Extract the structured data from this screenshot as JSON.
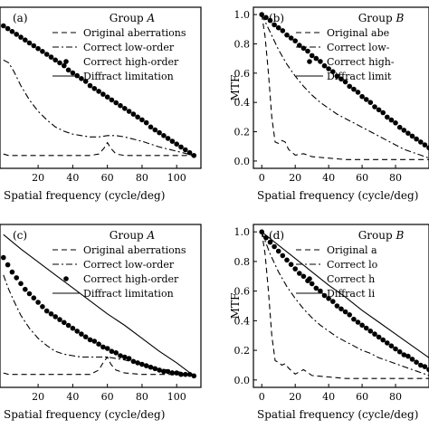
{
  "chart_data": [
    {
      "type": "line",
      "panel_label": "(a)",
      "group_label": "Group",
      "group_letter": "A",
      "xlabel": "Spatial frequency (cycle/deg)",
      "ylabel": "",
      "xlim": [
        -2,
        114
      ],
      "ylim": [
        -0.08,
        1.05
      ],
      "xticks": [
        20,
        40,
        60,
        80,
        100
      ],
      "yticks": [],
      "legend_position": "top-right",
      "series": [
        {
          "name": "Original aberrations",
          "style": "dashed",
          "x": [
            0,
            3,
            6,
            10,
            20,
            30,
            40,
            50,
            55,
            58,
            60,
            62,
            65,
            70,
            80,
            90,
            100,
            110
          ],
          "y": [
            0.02,
            0.01,
            0.01,
            0.01,
            0.01,
            0.01,
            0.01,
            0.01,
            0.02,
            0.06,
            0.1,
            0.06,
            0.02,
            0.01,
            0.01,
            0.01,
            0.01,
            0.01
          ]
        },
        {
          "name": "Correct low-order",
          "style": "dashdot",
          "x": [
            0,
            3,
            6,
            10,
            15,
            20,
            25,
            30,
            35,
            40,
            45,
            50,
            55,
            60,
            65,
            70,
            80,
            90,
            100,
            110
          ],
          "y": [
            0.68,
            0.66,
            0.6,
            0.5,
            0.4,
            0.32,
            0.26,
            0.21,
            0.18,
            0.16,
            0.15,
            0.14,
            0.14,
            0.15,
            0.15,
            0.14,
            0.11,
            0.07,
            0.04,
            0.01
          ]
        },
        {
          "name": "Correct high-order",
          "style": "dots",
          "x": [
            0,
            2.5,
            5,
            7.5,
            10,
            12.5,
            15,
            17.5,
            20,
            22.5,
            25,
            27.5,
            30,
            32.5,
            35,
            37.5,
            40,
            42.5,
            45,
            47.5,
            50,
            52.5,
            55,
            57.5,
            60,
            62.5,
            65,
            67.5,
            70,
            72.5,
            75,
            77.5,
            80,
            82.5,
            85,
            87.5,
            90,
            92.5,
            95,
            97.5,
            100,
            102.5,
            105,
            107.5,
            110
          ],
          "y": [
            0.92,
            0.9,
            0.88,
            0.86,
            0.84,
            0.82,
            0.8,
            0.78,
            0.76,
            0.74,
            0.72,
            0.7,
            0.68,
            0.66,
            0.64,
            0.61,
            0.59,
            0.57,
            0.55,
            0.53,
            0.5,
            0.48,
            0.46,
            0.44,
            0.42,
            0.4,
            0.38,
            0.36,
            0.34,
            0.32,
            0.3,
            0.28,
            0.26,
            0.24,
            0.21,
            0.19,
            0.17,
            0.15,
            0.13,
            0.11,
            0.09,
            0.07,
            0.05,
            0.03,
            0.01
          ]
        },
        {
          "name": "Diffract limitation",
          "style": "solid",
          "x": [],
          "y": []
        }
      ]
    },
    {
      "type": "line",
      "panel_label": "(b)",
      "group_label": "Group",
      "group_letter": "B",
      "xlabel": "Spatial frequency (cycle/deg)",
      "ylabel": "MTF",
      "xlim": [
        -5,
        100
      ],
      "ylim": [
        -0.05,
        1.05
      ],
      "xticks": [
        0,
        20,
        40,
        60,
        80
      ],
      "xtick_labels": [
        "0",
        "20",
        "40",
        "60",
        "80"
      ],
      "yticks": [
        0.0,
        0.2,
        0.4,
        0.6,
        0.8,
        1.0
      ],
      "ytick_labels": [
        "0.0",
        "0.2",
        "0.4",
        "0.6",
        "0.8",
        "1.0"
      ],
      "legend_position": "top-right",
      "legend_labels": [
        "Original abe",
        "Correct low-",
        "Correct high-",
        "Diffract limit"
      ],
      "series": [
        {
          "name": "Original aberrations",
          "style": "dashed",
          "x": [
            0,
            2,
            4,
            6,
            8,
            10,
            12,
            14,
            16,
            20,
            25,
            30,
            40,
            50,
            60,
            70,
            80,
            90,
            100
          ],
          "y": [
            1.0,
            0.85,
            0.6,
            0.3,
            0.13,
            0.12,
            0.14,
            0.13,
            0.08,
            0.04,
            0.05,
            0.03,
            0.02,
            0.01,
            0.01,
            0.01,
            0.01,
            0.01,
            0.01
          ]
        },
        {
          "name": "Correct low-order",
          "style": "dashdot",
          "x": [
            0,
            5,
            10,
            15,
            20,
            25,
            30,
            35,
            40,
            45,
            50,
            55,
            60,
            65,
            70,
            75,
            80,
            85,
            90,
            95,
            100
          ],
          "y": [
            1.0,
            0.88,
            0.76,
            0.66,
            0.58,
            0.51,
            0.45,
            0.4,
            0.36,
            0.32,
            0.29,
            0.26,
            0.23,
            0.2,
            0.17,
            0.14,
            0.11,
            0.08,
            0.06,
            0.04,
            0.02
          ]
        },
        {
          "name": "Correct high-order",
          "style": "dots",
          "x": [
            0,
            2.5,
            5,
            7.5,
            10,
            12.5,
            15,
            17.5,
            20,
            22.5,
            25,
            27.5,
            30,
            32.5,
            35,
            37.5,
            40,
            42.5,
            45,
            47.5,
            50,
            52.5,
            55,
            57.5,
            60,
            62.5,
            65,
            67.5,
            70,
            72.5,
            75,
            77.5,
            80,
            82.5,
            85,
            87.5,
            90,
            92.5,
            95,
            97.5,
            100
          ],
          "y": [
            1.0,
            0.98,
            0.96,
            0.93,
            0.91,
            0.89,
            0.86,
            0.84,
            0.82,
            0.79,
            0.77,
            0.75,
            0.72,
            0.7,
            0.68,
            0.65,
            0.63,
            0.61,
            0.58,
            0.56,
            0.54,
            0.51,
            0.49,
            0.47,
            0.44,
            0.42,
            0.4,
            0.37,
            0.35,
            0.33,
            0.3,
            0.28,
            0.26,
            0.23,
            0.21,
            0.19,
            0.17,
            0.15,
            0.13,
            0.11,
            0.09
          ]
        },
        {
          "name": "Diffract limitation",
          "style": "solid",
          "x": [],
          "y": []
        }
      ]
    },
    {
      "type": "line",
      "panel_label": "(c)",
      "group_label": "Group",
      "group_letter": "A",
      "xlabel": "Spatial frequency (cycle/deg)",
      "ylabel": "",
      "xlim": [
        -2,
        114
      ],
      "ylim": [
        -0.08,
        1.05
      ],
      "xticks": [
        20,
        40,
        60,
        80,
        100
      ],
      "yticks": [],
      "legend_position": "top-right",
      "series": [
        {
          "name": "Original aberrations",
          "style": "dashed",
          "x": [
            0,
            3,
            6,
            10,
            20,
            30,
            40,
            50,
            55,
            58,
            60,
            62,
            65,
            70,
            80,
            90,
            100,
            110
          ],
          "y": [
            0.02,
            0.01,
            0.01,
            0.01,
            0.01,
            0.01,
            0.01,
            0.01,
            0.04,
            0.1,
            0.13,
            0.08,
            0.04,
            0.02,
            0.01,
            0.01,
            0.01,
            0.01
          ]
        },
        {
          "name": "Correct low-order",
          "style": "dashdot",
          "x": [
            0,
            3,
            6,
            10,
            15,
            20,
            25,
            30,
            35,
            40,
            45,
            50,
            55,
            60,
            65,
            70,
            80,
            90,
            100,
            110
          ],
          "y": [
            0.7,
            0.6,
            0.52,
            0.42,
            0.33,
            0.26,
            0.21,
            0.17,
            0.15,
            0.14,
            0.13,
            0.13,
            0.13,
            0.13,
            0.12,
            0.11,
            0.08,
            0.05,
            0.03,
            0.01
          ]
        },
        {
          "name": "Correct high-order",
          "style": "dots",
          "x": [
            0,
            2.5,
            5,
            7.5,
            10,
            12.5,
            15,
            17.5,
            20,
            22.5,
            25,
            27.5,
            30,
            32.5,
            35,
            37.5,
            40,
            42.5,
            45,
            47.5,
            50,
            52.5,
            55,
            57.5,
            60,
            62.5,
            65,
            67.5,
            70,
            72.5,
            75,
            77.5,
            80,
            82.5,
            85,
            87.5,
            90,
            92.5,
            95,
            97.5,
            100,
            102.5,
            105,
            107.5,
            110
          ],
          "y": [
            0.82,
            0.77,
            0.72,
            0.68,
            0.64,
            0.6,
            0.57,
            0.54,
            0.51,
            0.48,
            0.45,
            0.43,
            0.41,
            0.39,
            0.37,
            0.35,
            0.33,
            0.31,
            0.29,
            0.27,
            0.25,
            0.24,
            0.22,
            0.2,
            0.19,
            0.17,
            0.16,
            0.14,
            0.13,
            0.12,
            0.1,
            0.09,
            0.08,
            0.07,
            0.06,
            0.05,
            0.04,
            0.03,
            0.03,
            0.02,
            0.02,
            0.01,
            0.01,
            0.01,
            0.0
          ]
        },
        {
          "name": "Diffract limitation",
          "style": "solid",
          "x": [
            0,
            10,
            20,
            30,
            40,
            50,
            60,
            70,
            80,
            90,
            100,
            110
          ],
          "y": [
            0.98,
            0.88,
            0.79,
            0.7,
            0.61,
            0.52,
            0.43,
            0.35,
            0.26,
            0.17,
            0.09,
            0.0
          ]
        }
      ]
    },
    {
      "type": "line",
      "panel_label": "(d)",
      "group_label": "Group",
      "group_letter": "B",
      "xlabel": "Spatial frequency (cycle/deg)",
      "ylabel": "MTF",
      "xlim": [
        -5,
        100
      ],
      "ylim": [
        -0.05,
        1.05
      ],
      "xticks": [
        0,
        20,
        40,
        60,
        80
      ],
      "xtick_labels": [
        "0",
        "20",
        "40",
        "60",
        "80"
      ],
      "yticks": [
        0.0,
        0.2,
        0.4,
        0.6,
        0.8,
        1.0
      ],
      "ytick_labels": [
        "0.0",
        "0.2",
        "0.4",
        "0.6",
        "0.8",
        "1.0"
      ],
      "legend_position": "top-right",
      "legend_labels": [
        "Original a",
        "Correct lo",
        "Correct h",
        "Diffract li"
      ],
      "series": [
        {
          "name": "Original aberrations",
          "style": "dashed",
          "x": [
            0,
            2,
            4,
            6,
            8,
            10,
            12,
            14,
            16,
            20,
            25,
            30,
            40,
            50,
            60,
            70,
            80,
            90,
            100
          ],
          "y": [
            1.0,
            0.85,
            0.6,
            0.3,
            0.13,
            0.12,
            0.1,
            0.11,
            0.08,
            0.04,
            0.07,
            0.03,
            0.02,
            0.01,
            0.01,
            0.01,
            0.01,
            0.01,
            0.01
          ]
        },
        {
          "name": "Correct low-order",
          "style": "dashdot",
          "x": [
            0,
            5,
            10,
            15,
            20,
            25,
            30,
            35,
            40,
            45,
            50,
            55,
            60,
            65,
            70,
            75,
            80,
            85,
            90,
            95,
            100
          ],
          "y": [
            1.0,
            0.85,
            0.73,
            0.63,
            0.55,
            0.48,
            0.42,
            0.37,
            0.33,
            0.29,
            0.26,
            0.23,
            0.2,
            0.18,
            0.15,
            0.13,
            0.11,
            0.09,
            0.07,
            0.05,
            0.03
          ]
        },
        {
          "name": "Correct high-order",
          "style": "dots",
          "x": [
            0,
            2.5,
            5,
            7.5,
            10,
            12.5,
            15,
            17.5,
            20,
            22.5,
            25,
            27.5,
            30,
            32.5,
            35,
            37.5,
            40,
            42.5,
            45,
            47.5,
            50,
            52.5,
            55,
            57.5,
            60,
            62.5,
            65,
            67.5,
            70,
            72.5,
            75,
            77.5,
            80,
            82.5,
            85,
            87.5,
            90,
            92.5,
            95,
            97.5,
            100
          ],
          "y": [
            1.0,
            0.96,
            0.93,
            0.9,
            0.87,
            0.84,
            0.81,
            0.78,
            0.75,
            0.72,
            0.7,
            0.67,
            0.65,
            0.62,
            0.6,
            0.57,
            0.55,
            0.53,
            0.5,
            0.48,
            0.46,
            0.44,
            0.41,
            0.39,
            0.37,
            0.35,
            0.33,
            0.31,
            0.29,
            0.27,
            0.25,
            0.23,
            0.21,
            0.19,
            0.17,
            0.16,
            0.14,
            0.12,
            0.1,
            0.09,
            0.07
          ]
        },
        {
          "name": "Diffract limitation",
          "style": "solid",
          "x": [
            0,
            10,
            20,
            30,
            40,
            50,
            60,
            70,
            80,
            90,
            100
          ],
          "y": [
            1.0,
            0.91,
            0.82,
            0.73,
            0.64,
            0.56,
            0.47,
            0.39,
            0.31,
            0.23,
            0.15
          ]
        }
      ]
    }
  ]
}
